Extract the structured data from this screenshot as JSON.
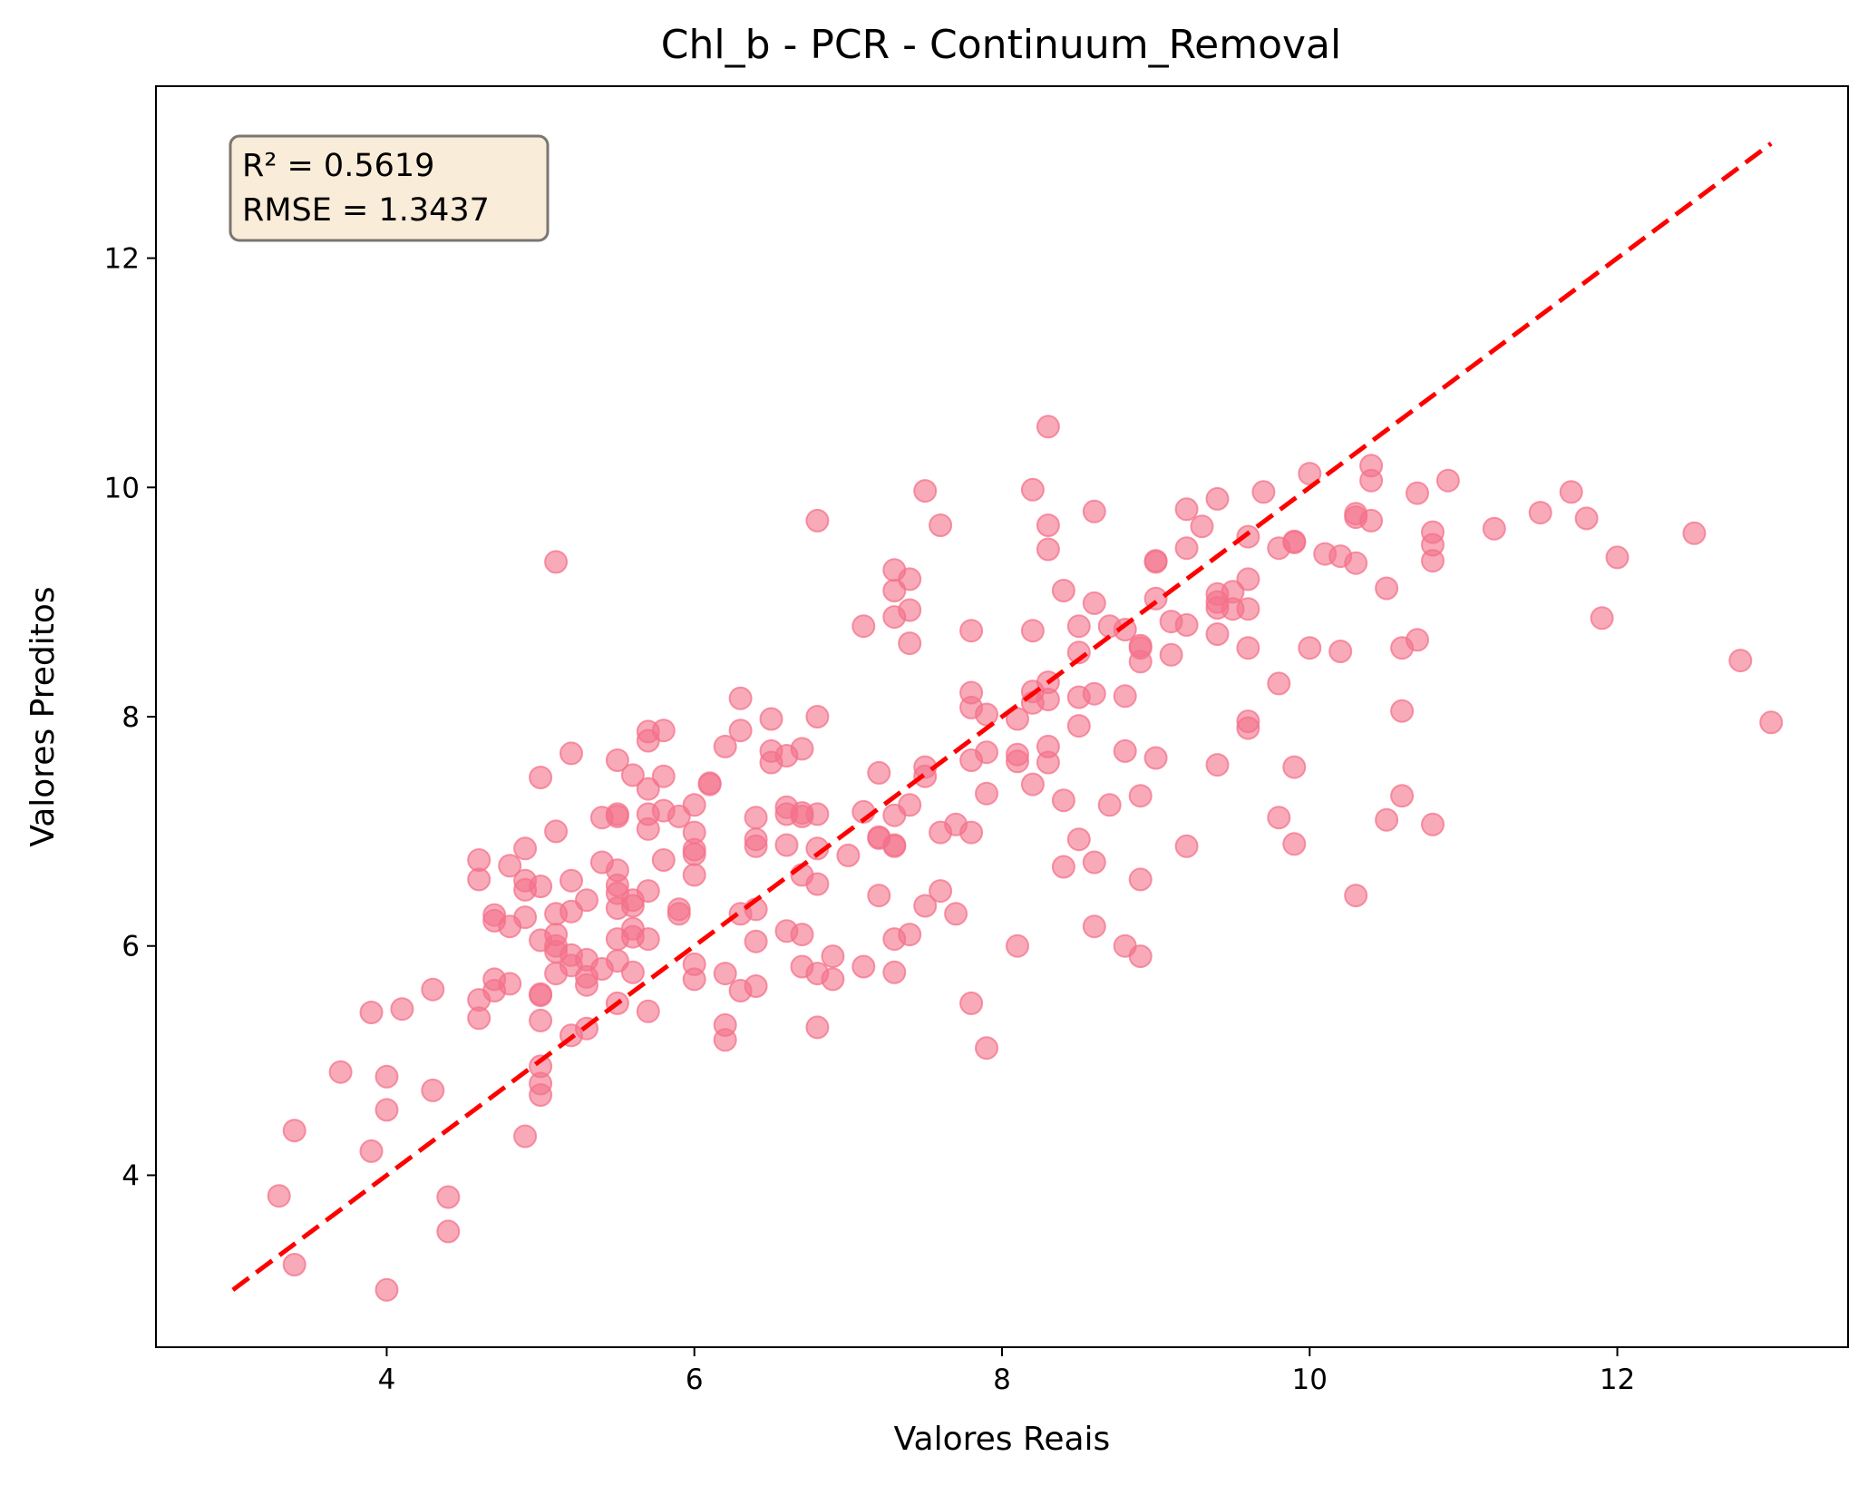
{
  "chart_data": {
    "type": "scatter",
    "title": "Chl_b - PCR - Continuum_Removal",
    "xlabel": "Valores Reais",
    "ylabel": "Valores Preditos",
    "xlim": [
      2.5,
      13.5
    ],
    "ylim": [
      2.5,
      13.5
    ],
    "xticks": [
      4,
      6,
      8,
      10,
      12
    ],
    "yticks": [
      4,
      6,
      8,
      10,
      12
    ],
    "grid": false,
    "point_color": "#f4728a",
    "line_color": "#ff0000",
    "stats": {
      "r2_label": "R² = 0.5619",
      "rmse_label": "RMSE = 1.3437"
    },
    "identity_line": {
      "x": [
        3.0,
        13.0
      ],
      "y": [
        3.0,
        13.0
      ]
    },
    "points": [
      [
        3.3,
        3.82
      ],
      [
        3.4,
        4.39
      ],
      [
        3.4,
        3.22
      ],
      [
        3.7,
        4.9
      ],
      [
        3.9,
        5.42
      ],
      [
        3.9,
        4.21
      ],
      [
        4.0,
        4.86
      ],
      [
        4.0,
        4.57
      ],
      [
        4.0,
        3.0
      ],
      [
        4.1,
        5.45
      ],
      [
        4.3,
        5.62
      ],
      [
        4.3,
        4.74
      ],
      [
        4.4,
        3.81
      ],
      [
        4.4,
        3.51
      ],
      [
        4.6,
        6.75
      ],
      [
        4.6,
        6.58
      ],
      [
        4.6,
        5.53
      ],
      [
        4.6,
        5.37
      ],
      [
        4.7,
        6.27
      ],
      [
        4.7,
        6.22
      ],
      [
        4.7,
        5.71
      ],
      [
        4.7,
        5.61
      ],
      [
        4.8,
        6.7
      ],
      [
        4.8,
        6.17
      ],
      [
        4.8,
        5.67
      ],
      [
        4.9,
        6.85
      ],
      [
        4.9,
        6.57
      ],
      [
        4.9,
        6.49
      ],
      [
        4.9,
        6.25
      ],
      [
        4.9,
        4.34
      ],
      [
        5.0,
        7.47
      ],
      [
        5.0,
        6.52
      ],
      [
        5.0,
        6.05
      ],
      [
        5.0,
        5.58
      ],
      [
        5.0,
        5.57
      ],
      [
        5.0,
        5.35
      ],
      [
        5.0,
        4.95
      ],
      [
        5.0,
        4.8
      ],
      [
        5.0,
        4.7
      ],
      [
        5.1,
        9.35
      ],
      [
        5.1,
        7.0
      ],
      [
        5.1,
        6.28
      ],
      [
        5.1,
        6.1
      ],
      [
        5.1,
        6.0
      ],
      [
        5.1,
        5.95
      ],
      [
        5.1,
        5.76
      ],
      [
        5.2,
        7.68
      ],
      [
        5.2,
        6.57
      ],
      [
        5.2,
        6.3
      ],
      [
        5.2,
        5.92
      ],
      [
        5.2,
        5.83
      ],
      [
        5.2,
        5.22
      ],
      [
        5.3,
        6.4
      ],
      [
        5.3,
        5.88
      ],
      [
        5.3,
        5.73
      ],
      [
        5.3,
        5.66
      ],
      [
        5.3,
        5.28
      ],
      [
        5.4,
        7.12
      ],
      [
        5.4,
        6.73
      ],
      [
        5.4,
        5.8
      ],
      [
        5.5,
        7.62
      ],
      [
        5.5,
        7.15
      ],
      [
        5.5,
        7.13
      ],
      [
        5.5,
        6.66
      ],
      [
        5.5,
        6.53
      ],
      [
        5.5,
        6.46
      ],
      [
        5.5,
        6.33
      ],
      [
        5.5,
        6.06
      ],
      [
        5.5,
        5.87
      ],
      [
        5.5,
        5.5
      ],
      [
        5.6,
        7.49
      ],
      [
        5.6,
        6.4
      ],
      [
        5.6,
        6.35
      ],
      [
        5.6,
        6.15
      ],
      [
        5.6,
        6.08
      ],
      [
        5.6,
        5.77
      ],
      [
        5.7,
        7.87
      ],
      [
        5.7,
        7.79
      ],
      [
        5.7,
        7.37
      ],
      [
        5.7,
        7.15
      ],
      [
        5.7,
        7.02
      ],
      [
        5.7,
        6.48
      ],
      [
        5.7,
        6.06
      ],
      [
        5.7,
        5.43
      ],
      [
        5.8,
        7.88
      ],
      [
        5.8,
        7.48
      ],
      [
        5.8,
        7.18
      ],
      [
        5.8,
        6.75
      ],
      [
        5.9,
        7.13
      ],
      [
        5.9,
        6.32
      ],
      [
        5.9,
        6.28
      ],
      [
        6.0,
        7.23
      ],
      [
        6.0,
        6.99
      ],
      [
        6.0,
        6.84
      ],
      [
        6.0,
        6.8
      ],
      [
        6.0,
        6.62
      ],
      [
        6.0,
        5.84
      ],
      [
        6.0,
        5.71
      ],
      [
        6.1,
        7.42
      ],
      [
        6.1,
        7.41
      ],
      [
        6.2,
        7.74
      ],
      [
        6.2,
        5.76
      ],
      [
        6.2,
        5.31
      ],
      [
        6.2,
        5.18
      ],
      [
        6.3,
        8.16
      ],
      [
        6.3,
        7.88
      ],
      [
        6.3,
        6.28
      ],
      [
        6.3,
        5.61
      ],
      [
        6.4,
        7.12
      ],
      [
        6.4,
        6.93
      ],
      [
        6.4,
        6.87
      ],
      [
        6.4,
        6.32
      ],
      [
        6.4,
        6.04
      ],
      [
        6.4,
        5.65
      ],
      [
        6.5,
        7.98
      ],
      [
        6.5,
        7.7
      ],
      [
        6.5,
        7.6
      ],
      [
        6.6,
        7.66
      ],
      [
        6.6,
        7.21
      ],
      [
        6.6,
        7.15
      ],
      [
        6.6,
        6.88
      ],
      [
        6.6,
        6.13
      ],
      [
        6.7,
        7.72
      ],
      [
        6.7,
        7.16
      ],
      [
        6.7,
        7.13
      ],
      [
        6.7,
        6.62
      ],
      [
        6.7,
        6.1
      ],
      [
        6.7,
        5.82
      ],
      [
        6.8,
        9.71
      ],
      [
        6.8,
        8.0
      ],
      [
        6.8,
        7.15
      ],
      [
        6.8,
        6.85
      ],
      [
        6.8,
        6.54
      ],
      [
        6.8,
        5.76
      ],
      [
        6.8,
        5.29
      ],
      [
        6.9,
        5.91
      ],
      [
        6.9,
        5.71
      ],
      [
        7.0,
        6.79
      ],
      [
        7.1,
        8.79
      ],
      [
        7.1,
        7.17
      ],
      [
        7.1,
        5.82
      ],
      [
        7.2,
        7.51
      ],
      [
        7.2,
        6.95
      ],
      [
        7.2,
        6.94
      ],
      [
        7.2,
        6.44
      ],
      [
        7.3,
        9.28
      ],
      [
        7.3,
        9.1
      ],
      [
        7.3,
        8.87
      ],
      [
        7.3,
        7.14
      ],
      [
        7.3,
        6.88
      ],
      [
        7.3,
        6.87
      ],
      [
        7.3,
        6.06
      ],
      [
        7.3,
        5.77
      ],
      [
        7.4,
        9.2
      ],
      [
        7.4,
        8.93
      ],
      [
        7.4,
        8.64
      ],
      [
        7.4,
        7.23
      ],
      [
        7.4,
        6.1
      ],
      [
        7.5,
        9.97
      ],
      [
        7.5,
        7.56
      ],
      [
        7.5,
        7.48
      ],
      [
        7.5,
        6.35
      ],
      [
        7.6,
        9.67
      ],
      [
        7.6,
        6.99
      ],
      [
        7.6,
        6.48
      ],
      [
        7.7,
        7.06
      ],
      [
        7.7,
        6.28
      ],
      [
        7.8,
        8.75
      ],
      [
        7.8,
        8.21
      ],
      [
        7.8,
        8.08
      ],
      [
        7.8,
        7.62
      ],
      [
        7.8,
        6.99
      ],
      [
        7.8,
        5.5
      ],
      [
        7.9,
        8.02
      ],
      [
        7.9,
        7.69
      ],
      [
        7.9,
        7.33
      ],
      [
        7.9,
        5.11
      ],
      [
        8.1,
        7.98
      ],
      [
        8.1,
        7.67
      ],
      [
        8.1,
        7.61
      ],
      [
        8.1,
        6.0
      ],
      [
        8.2,
        9.98
      ],
      [
        8.2,
        8.75
      ],
      [
        8.2,
        8.22
      ],
      [
        8.2,
        8.12
      ],
      [
        8.2,
        7.41
      ],
      [
        8.3,
        10.53
      ],
      [
        8.3,
        9.67
      ],
      [
        8.3,
        9.46
      ],
      [
        8.3,
        8.3
      ],
      [
        8.3,
        8.15
      ],
      [
        8.3,
        7.74
      ],
      [
        8.3,
        7.6
      ],
      [
        8.4,
        9.1
      ],
      [
        8.4,
        7.27
      ],
      [
        8.4,
        6.69
      ],
      [
        8.5,
        8.79
      ],
      [
        8.5,
        8.56
      ],
      [
        8.5,
        8.17
      ],
      [
        8.5,
        7.92
      ],
      [
        8.5,
        6.93
      ],
      [
        8.6,
        9.79
      ],
      [
        8.6,
        8.99
      ],
      [
        8.6,
        8.2
      ],
      [
        8.6,
        6.73
      ],
      [
        8.6,
        6.17
      ],
      [
        8.7,
        8.79
      ],
      [
        8.7,
        7.23
      ],
      [
        8.8,
        8.76
      ],
      [
        8.8,
        8.18
      ],
      [
        8.8,
        7.7
      ],
      [
        8.8,
        6.0
      ],
      [
        8.9,
        8.62
      ],
      [
        8.9,
        8.6
      ],
      [
        8.9,
        8.48
      ],
      [
        8.9,
        7.31
      ],
      [
        8.9,
        6.58
      ],
      [
        8.9,
        5.91
      ],
      [
        9.0,
        9.36
      ],
      [
        9.0,
        9.35
      ],
      [
        9.0,
        9.03
      ],
      [
        9.0,
        7.64
      ],
      [
        9.1,
        8.83
      ],
      [
        9.1,
        8.54
      ],
      [
        9.2,
        9.81
      ],
      [
        9.2,
        9.47
      ],
      [
        9.2,
        8.8
      ],
      [
        9.2,
        6.87
      ],
      [
        9.3,
        9.66
      ],
      [
        9.4,
        9.9
      ],
      [
        9.4,
        9.07
      ],
      [
        9.4,
        9.0
      ],
      [
        9.4,
        8.95
      ],
      [
        9.4,
        8.72
      ],
      [
        9.4,
        7.58
      ],
      [
        9.5,
        9.09
      ],
      [
        9.5,
        8.94
      ],
      [
        9.6,
        9.57
      ],
      [
        9.6,
        9.2
      ],
      [
        9.6,
        8.94
      ],
      [
        9.6,
        8.6
      ],
      [
        9.6,
        7.96
      ],
      [
        9.6,
        7.9
      ],
      [
        9.7,
        9.96
      ],
      [
        9.8,
        9.47
      ],
      [
        9.8,
        8.29
      ],
      [
        9.8,
        7.12
      ],
      [
        9.9,
        9.53
      ],
      [
        9.9,
        9.52
      ],
      [
        9.9,
        7.56
      ],
      [
        9.9,
        6.89
      ],
      [
        10.0,
        10.12
      ],
      [
        10.0,
        8.6
      ],
      [
        10.1,
        9.42
      ],
      [
        10.2,
        9.4
      ],
      [
        10.2,
        8.57
      ],
      [
        10.3,
        9.77
      ],
      [
        10.3,
        9.74
      ],
      [
        10.3,
        9.34
      ],
      [
        10.3,
        6.44
      ],
      [
        10.4,
        10.19
      ],
      [
        10.4,
        10.06
      ],
      [
        10.4,
        9.71
      ],
      [
        10.5,
        9.12
      ],
      [
        10.5,
        7.1
      ],
      [
        10.6,
        8.6
      ],
      [
        10.6,
        8.05
      ],
      [
        10.6,
        7.31
      ],
      [
        10.7,
        9.95
      ],
      [
        10.7,
        8.67
      ],
      [
        10.8,
        9.61
      ],
      [
        10.8,
        9.5
      ],
      [
        10.8,
        9.36
      ],
      [
        10.8,
        7.06
      ],
      [
        10.9,
        10.06
      ],
      [
        11.2,
        9.64
      ],
      [
        11.5,
        9.78
      ],
      [
        11.7,
        9.96
      ],
      [
        11.8,
        9.73
      ],
      [
        11.9,
        8.86
      ],
      [
        12.0,
        9.39
      ],
      [
        12.5,
        9.6
      ],
      [
        12.8,
        8.49
      ],
      [
        13.0,
        7.95
      ]
    ]
  }
}
